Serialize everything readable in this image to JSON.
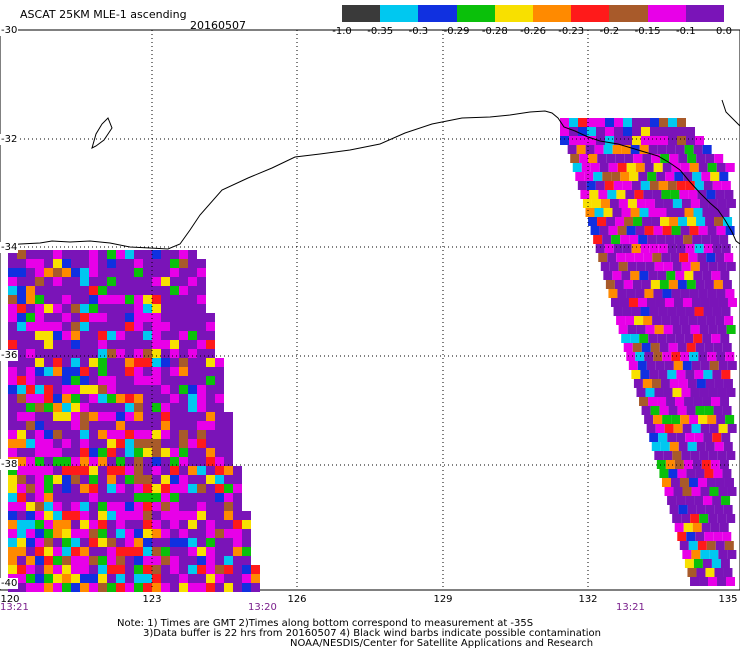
{
  "header": {
    "title": "ASCAT 25KM MLE-1 ascending",
    "date": "20160507"
  },
  "colorbar": {
    "labels": [
      "-1.0",
      "-0.35",
      "-0.3",
      "-0.29",
      "-0.28",
      "-0.26",
      "-0.23",
      "-0.2",
      "-0.15",
      "-0.1",
      "0.0"
    ],
    "colors": [
      "#3a3a3a",
      "#00c8f0",
      "#1030e0",
      "#0ac00a",
      "#f8e000",
      "#ff8a00",
      "#ff1a1a",
      "#a85a2a",
      "#e800e8",
      "#7a14b8"
    ]
  },
  "axes": {
    "lat_labels": [
      "-30",
      "-32",
      "-34",
      "-36",
      "-38",
      "-40"
    ],
    "lon_labels": [
      "120",
      "123",
      "126",
      "129",
      "132",
      "135"
    ],
    "gmt_labels": [
      "13:21",
      "13:20",
      "13:21"
    ]
  },
  "notes": {
    "line1": "Note: 1) Times are GMT 2)Times along bottom correspond to measurement at -35S",
    "line2": "3)Data buffer is 22 hrs from 20160507 4) Black wind barbs indicate possible contamination",
    "line3": "NOAA/NESDIS/Center for Satellite Applications and Research"
  }
}
